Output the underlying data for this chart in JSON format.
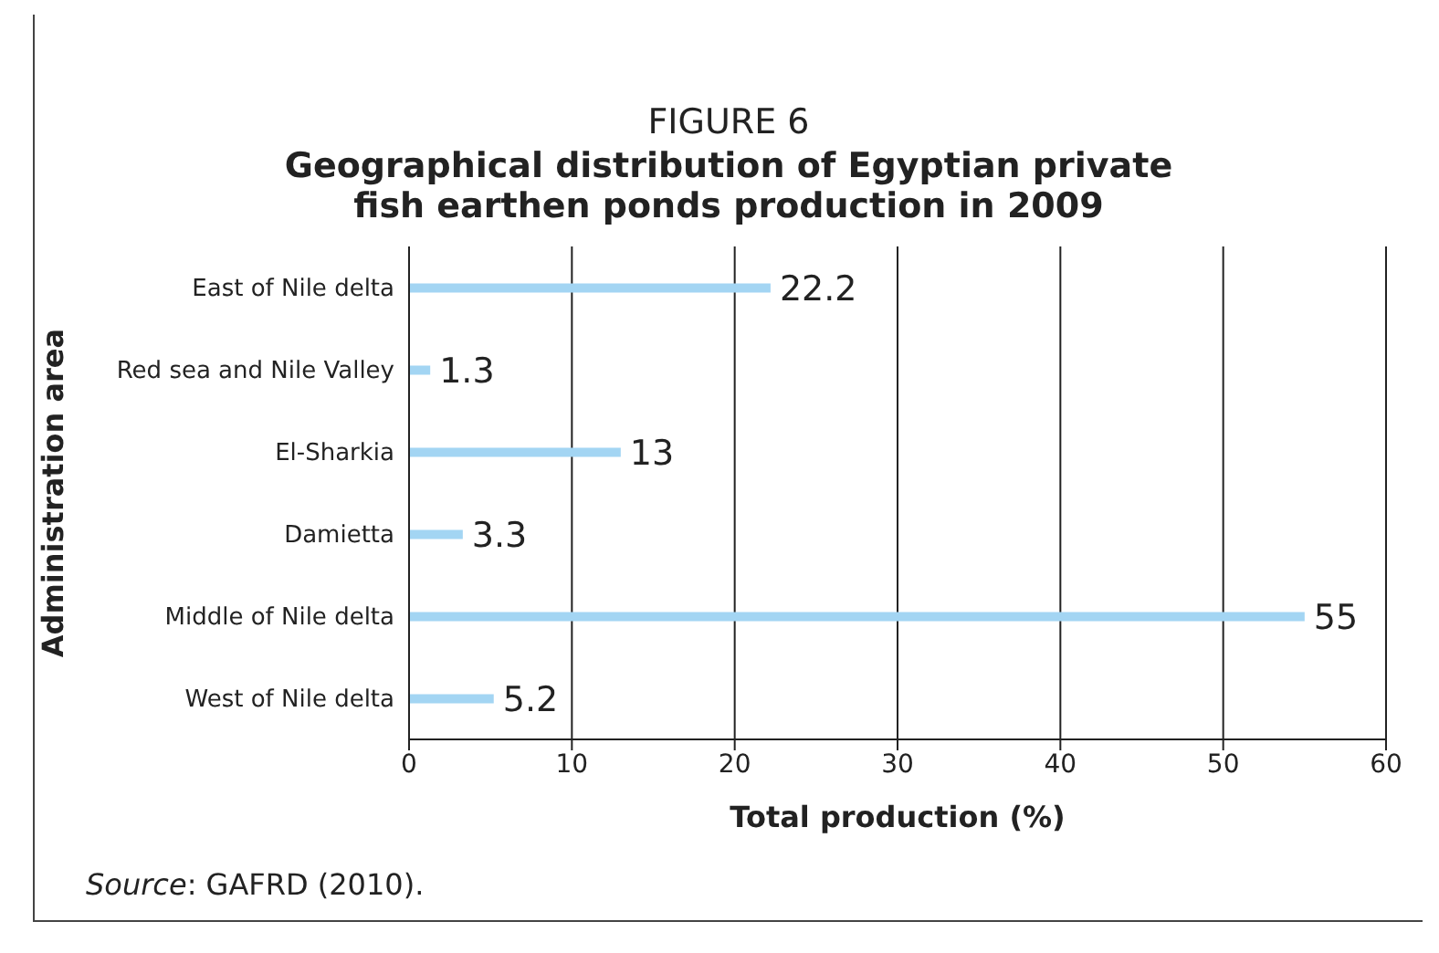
{
  "chart_data": {
    "type": "bar",
    "orientation": "horizontal",
    "title": "FIGURE 6",
    "subtitle": "Geographical distribution of Egyptian private fish earthen ponds production in 2009",
    "categories": [
      "East of Nile delta",
      "Red sea and Nile Valley",
      "El-Sharkia",
      "Damietta",
      "Middle of Nile delta",
      "West of Nile delta"
    ],
    "values": [
      22.2,
      1.3,
      13,
      3.3,
      55,
      5.2
    ],
    "color": "#a3d5f3",
    "data_labels": true,
    "xlim": [
      0,
      60
    ],
    "xticks": [
      0,
      10,
      20,
      30,
      40,
      50,
      60
    ],
    "grid": "x",
    "xlabel": "Total production (%)",
    "ylabel": "Administration area",
    "annotations": [
      "Source: GAFRD (2010)."
    ]
  }
}
